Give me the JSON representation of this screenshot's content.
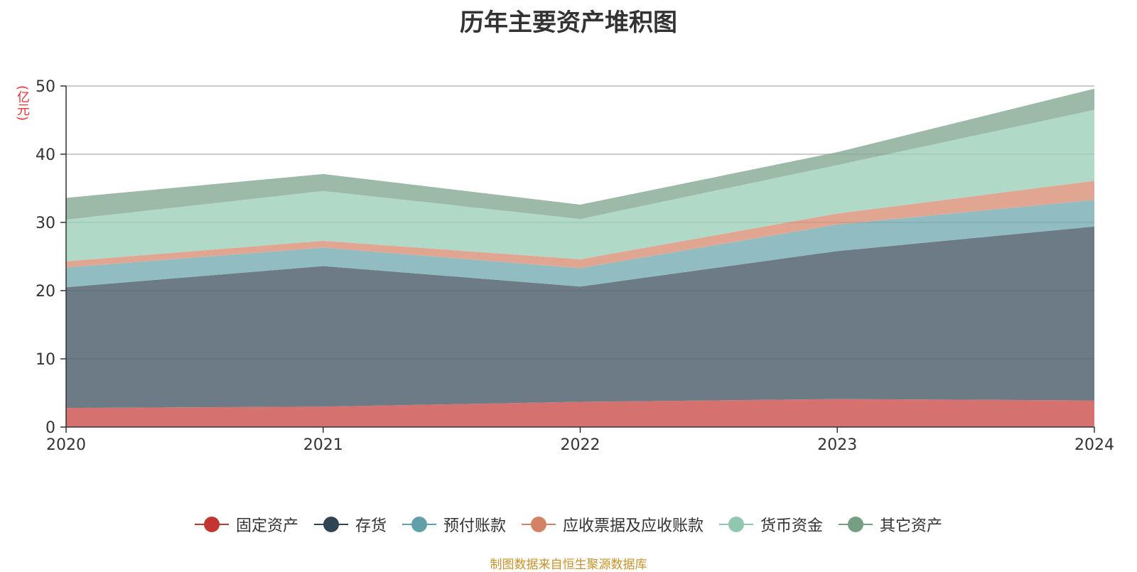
{
  "chart_data": {
    "type": "area",
    "stacked": true,
    "title": "历年主要资产堆积图",
    "unit_label": "(亿元)",
    "x": [
      "2020",
      "2021",
      "2022",
      "2023",
      "2024"
    ],
    "ylim": [
      0,
      50
    ],
    "yticks": [
      0,
      10,
      20,
      30,
      40,
      50
    ],
    "grid": true,
    "legend_position": "bottom",
    "series": [
      {
        "name": "固定资产",
        "color": "#c23531",
        "fill": "#d5716e",
        "values": [
          2.8,
          3.0,
          3.7,
          4.1,
          3.9
        ]
      },
      {
        "name": "存货",
        "color": "#2f4554",
        "fill": "#6d7b87",
        "values": [
          17.7,
          20.6,
          16.9,
          21.7,
          25.5
        ]
      },
      {
        "name": "预付账款",
        "color": "#61a0a8",
        "fill": "#90bcc2",
        "values": [
          2.9,
          2.7,
          2.7,
          3.9,
          3.9
        ]
      },
      {
        "name": "应收票据及应收账款",
        "color": "#d48265",
        "fill": "#e1a691",
        "values": [
          0.9,
          1.0,
          1.3,
          1.6,
          2.8
        ]
      },
      {
        "name": "货币资金",
        "color": "#91c7ae",
        "fill": "#b1d9c7",
        "values": [
          6.1,
          7.3,
          5.9,
          7.1,
          10.4
        ]
      },
      {
        "name": "其它资产",
        "color": "#749f83",
        "fill": "#9db9a7",
        "values": [
          3.2,
          2.5,
          2.1,
          1.9,
          3.1
        ]
      }
    ]
  },
  "source_text": "制图数据来自恒生聚源数据库"
}
